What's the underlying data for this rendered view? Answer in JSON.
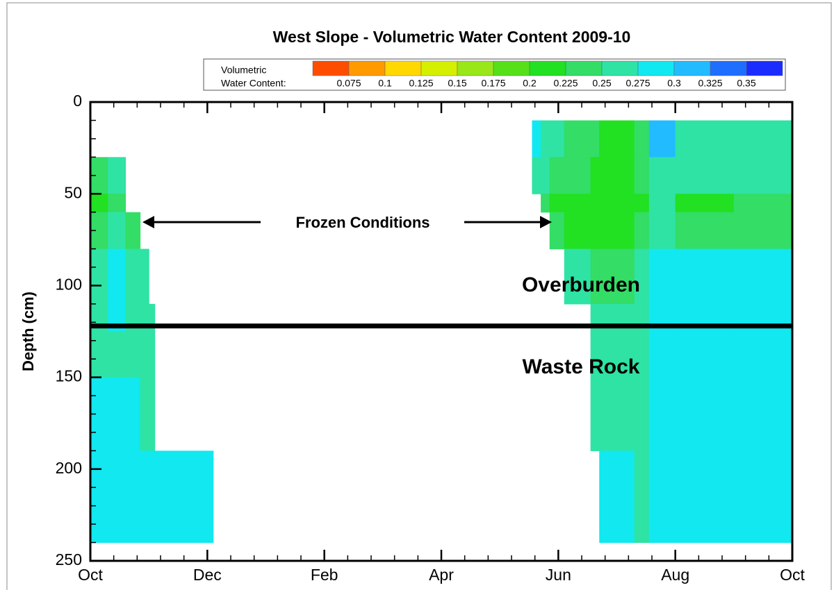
{
  "chart_data": {
    "type": "contour",
    "title": "West Slope - Volumetric Water Content 2009-10",
    "ylabel": "Depth (cm)",
    "ylim": [
      0,
      250
    ],
    "y_inverted": true,
    "yticks": [
      0,
      50,
      100,
      150,
      200,
      250
    ],
    "xlim": [
      0,
      12
    ],
    "xticks": [
      {
        "value": 0,
        "label": "Oct"
      },
      {
        "value": 2,
        "label": "Dec"
      },
      {
        "value": 4,
        "label": "Feb"
      },
      {
        "value": 6,
        "label": "Apr"
      },
      {
        "value": 8,
        "label": "Jun"
      },
      {
        "value": 10,
        "label": "Aug"
      },
      {
        "value": 12,
        "label": "Oct"
      }
    ],
    "legend_title": [
      "Volumetric",
      "Water Content:"
    ],
    "levels": [
      0.075,
      0.1,
      0.125,
      0.15,
      0.175,
      0.2,
      0.225,
      0.25,
      0.275,
      0.3,
      0.325,
      0.35
    ],
    "colors": [
      "#ff4d00",
      "#ff9a00",
      "#ffd800",
      "#d4f000",
      "#99e619",
      "#55e01a",
      "#22e022",
      "#33dd66",
      "#2ee3a3",
      "#11e8f0",
      "#22bbff",
      "#1e6eff",
      "#1a2cff"
    ],
    "x_edges": [
      0,
      0.3,
      0.6,
      0.85,
      1.0,
      1.1,
      2.1,
      7.55,
      7.7,
      7.85,
      8.1,
      8.55,
      8.7,
      9.3,
      9.55,
      10,
      11,
      12
    ],
    "depth_edges": [
      10,
      30,
      50,
      60,
      80,
      110,
      125,
      150,
      190,
      240
    ],
    "z": [
      [
        null,
        null,
        null,
        null,
        null,
        null,
        null,
        0.29,
        0.27,
        0.26,
        0.24,
        0.24,
        0.22,
        0.24,
        0.3,
        0.27,
        0.27
      ],
      [
        0.24,
        0.27,
        null,
        null,
        null,
        null,
        null,
        0.27,
        0.26,
        0.24,
        0.23,
        0.22,
        0.22,
        0.23,
        0.27,
        0.25,
        0.25
      ],
      [
        0.22,
        0.23,
        null,
        null,
        null,
        null,
        null,
        null,
        0.24,
        0.22,
        0.22,
        0.21,
        0.21,
        0.22,
        0.25,
        0.22,
        0.23
      ],
      [
        0.24,
        0.26,
        0.23,
        null,
        null,
        null,
        null,
        null,
        null,
        0.23,
        0.22,
        0.22,
        0.22,
        0.23,
        0.26,
        0.24,
        0.24
      ],
      [
        0.27,
        0.29,
        0.26,
        0.26,
        null,
        null,
        null,
        null,
        null,
        null,
        0.25,
        0.24,
        0.24,
        0.25,
        0.29,
        0.28,
        0.28
      ],
      [
        0.27,
        0.28,
        0.27,
        0.27,
        0.27,
        null,
        null,
        null,
        null,
        null,
        null,
        0.26,
        0.26,
        0.26,
        0.29,
        0.28,
        0.28
      ],
      [
        0.27,
        0.27,
        0.27,
        0.27,
        0.27,
        null,
        null,
        null,
        null,
        null,
        null,
        0.27,
        0.27,
        0.27,
        0.29,
        0.29,
        0.29
      ],
      [
        0.29,
        0.29,
        0.28,
        0.27,
        0.27,
        null,
        null,
        null,
        null,
        null,
        null,
        0.27,
        0.27,
        0.27,
        0.29,
        0.29,
        0.29
      ],
      [
        0.29,
        0.29,
        0.29,
        0.29,
        0.29,
        0.29,
        null,
        null,
        null,
        null,
        null,
        null,
        0.28,
        0.27,
        0.29,
        0.29,
        0.29
      ]
    ],
    "boundary_depth": 122,
    "annotations": [
      "Frozen Conditions",
      "Overburden",
      "Waste Rock"
    ]
  }
}
